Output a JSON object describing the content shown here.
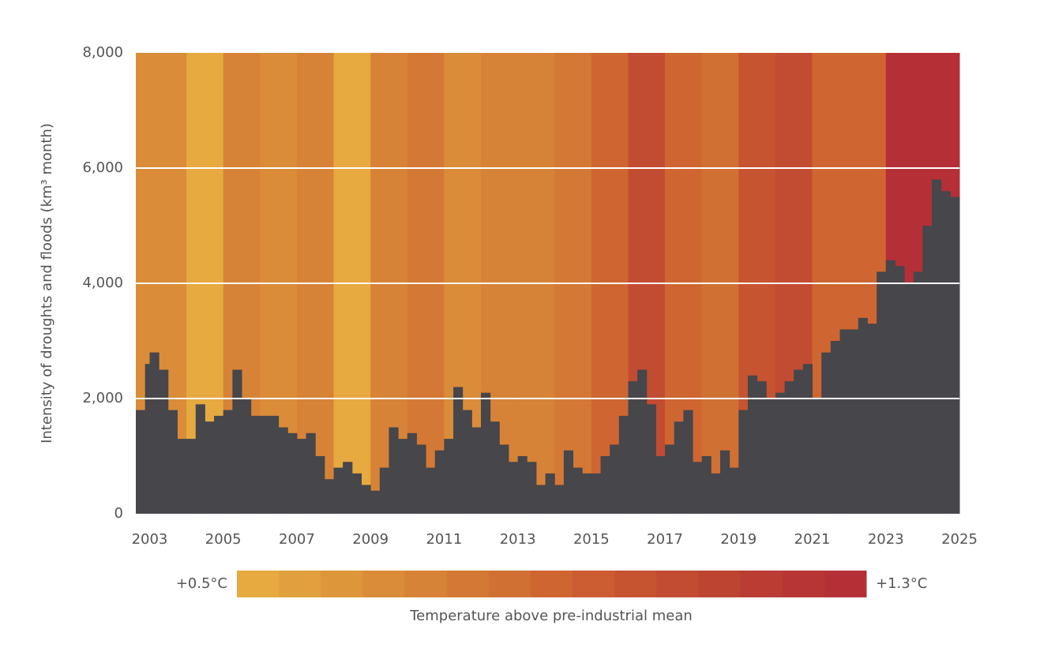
{
  "chart_data": {
    "type": "bar",
    "y_label": "Intensity of droughts and floods (km³ month)",
    "color": "#46464b",
    "x": [
      2002.625,
      2002.875,
      2003.0,
      2003.25,
      2003.5,
      2003.75,
      2004.0,
      2004.25,
      2004.5,
      2004.75,
      2005.0,
      2005.25,
      2005.5,
      2005.75,
      2006.0,
      2006.25,
      2006.5,
      2006.75,
      2007.0,
      2007.25,
      2007.5,
      2007.75,
      2008.0,
      2008.25,
      2008.5,
      2008.75,
      2009.0,
      2009.25,
      2009.5,
      2009.75,
      2010.0,
      2010.25,
      2010.5,
      2010.75,
      2011.0,
      2011.25,
      2011.5,
      2011.75,
      2012.0,
      2012.25,
      2012.5,
      2012.75,
      2013.0,
      2013.25,
      2013.5,
      2013.75,
      2014.0,
      2014.25,
      2014.5,
      2014.75,
      2015.0,
      2015.25,
      2015.5,
      2015.75,
      2016.0,
      2016.25,
      2016.5,
      2016.75,
      2017.0,
      2017.25,
      2017.5,
      2017.75,
      2018.0,
      2018.25,
      2018.5,
      2018.75,
      2019.0,
      2019.25,
      2019.5,
      2019.75,
      2020.0,
      2020.25,
      2020.5,
      2020.75,
      2021.0,
      2021.25,
      2021.5,
      2021.75,
      2022.0,
      2022.25,
      2022.5,
      2022.75,
      2023.0,
      2023.25,
      2023.5,
      2023.75,
      2024.0,
      2024.25,
      2024.5,
      2024.75
    ],
    "values": [
      1800,
      2600,
      2800,
      2500,
      1800,
      1300,
      1300,
      1900,
      1600,
      1700,
      1800,
      2500,
      2000,
      1700,
      1700,
      1700,
      1500,
      1400,
      1300,
      1400,
      1000,
      600,
      800,
      900,
      700,
      500,
      400,
      800,
      1500,
      1300,
      1400,
      1200,
      800,
      1100,
      1300,
      2200,
      1800,
      1500,
      2100,
      1600,
      1200,
      900,
      1000,
      900,
      500,
      700,
      500,
      1100,
      800,
      700,
      700,
      1000,
      1200,
      1700,
      2300,
      2500,
      1900,
      1000,
      1200,
      1600,
      1800,
      900,
      1000,
      700,
      1100,
      800,
      1800,
      2400,
      2300,
      2000,
      2100,
      2300,
      2500,
      2600,
      2000,
      2800,
      3000,
      3200,
      3200,
      3400,
      3300,
      4200,
      4400,
      4300,
      4000,
      4200,
      5000,
      5800,
      5600,
      5500
    ],
    "xlim": [
      2002.625,
      2025
    ],
    "xticks": [
      2003,
      2005,
      2007,
      2009,
      2011,
      2013,
      2015,
      2017,
      2019,
      2021,
      2023,
      2025
    ],
    "ylim": [
      0,
      8000
    ],
    "yticks": [
      0,
      {
        "value": 2000,
        "label": "2,000"
      },
      {
        "value": 4000,
        "label": "4,000"
      },
      {
        "value": 6000,
        "label": "6,000"
      },
      {
        "value": 8000,
        "label": "8,000"
      }
    ],
    "grid": true,
    "stripes": {
      "x": [
        2002.625,
        2003,
        2004,
        2005,
        2006,
        2007,
        2008,
        2009,
        2010,
        2011,
        2012,
        2013,
        2014,
        2015,
        2016,
        2017,
        2018,
        2019,
        2020,
        2021,
        2022,
        2023,
        2024
      ],
      "values": [
        0.7,
        0.68,
        0.52,
        0.72,
        0.7,
        0.72,
        0.52,
        0.72,
        0.78,
        0.7,
        0.72,
        0.74,
        0.8,
        0.92,
        1.08,
        0.92,
        0.84,
        1.0,
        1.04,
        0.9,
        0.92,
        1.25,
        1.25
      ]
    },
    "colorbar": {
      "title": "Temperature above pre-industrial mean",
      "range": [
        {
          "value": 0.5,
          "label": "+0.5°C"
        },
        {
          "value": 1.3,
          "label": "+1.3°C"
        }
      ],
      "colors": [
        "#e6aa40",
        "#e1a03e",
        "#de963b",
        "#da8c39",
        "#d78337",
        "#d47935",
        "#d17033",
        "#cf6632",
        "#cc5c31",
        "#c65431",
        "#c24c31",
        "#be4432",
        "#ba3c33",
        "#b73535",
        "#b43036"
      ]
    }
  }
}
